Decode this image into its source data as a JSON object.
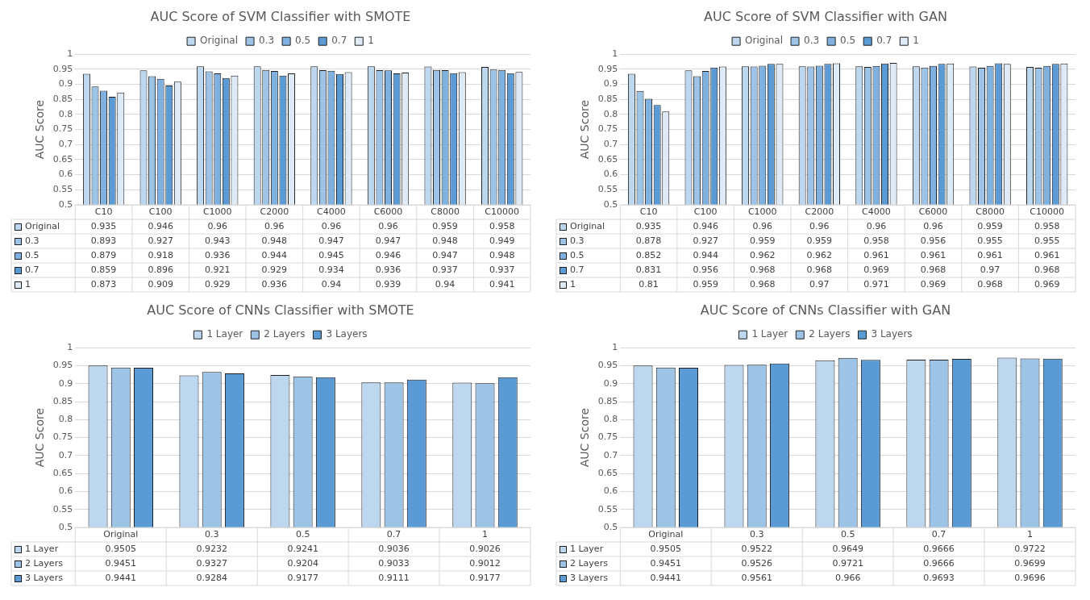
{
  "chart_data": [
    {
      "type": "bar",
      "title": "AUC Score of SVM Classifier with SMOTE",
      "ylabel": "AUC Score",
      "categories": [
        "C10",
        "C100",
        "C1000",
        "C2000",
        "C4000",
        "C6000",
        "C8000",
        "C10000"
      ],
      "series": [
        {
          "name": "Original",
          "color": "#bdd7ee",
          "values": [
            0.935,
            0.946,
            0.96,
            0.96,
            0.96,
            0.96,
            0.959,
            0.958
          ]
        },
        {
          "name": "0.3",
          "color": "#9dc3e6",
          "values": [
            0.893,
            0.927,
            0.943,
            0.948,
            0.947,
            0.947,
            0.948,
            0.949
          ]
        },
        {
          "name": "0.5",
          "color": "#7fb1e0",
          "values": [
            0.879,
            0.918,
            0.936,
            0.944,
            0.945,
            0.946,
            0.947,
            0.948
          ]
        },
        {
          "name": "0.7",
          "color": "#5b9bd5",
          "values": [
            0.859,
            0.896,
            0.921,
            0.929,
            0.934,
            0.936,
            0.937,
            0.937
          ]
        },
        {
          "name": "1",
          "color": "#deebf7",
          "values": [
            0.873,
            0.909,
            0.929,
            0.936,
            0.94,
            0.939,
            0.94,
            0.941
          ]
        }
      ],
      "ylim": [
        0.5,
        1
      ],
      "yticks": [
        0.5,
        0.55,
        0.6,
        0.65,
        0.7,
        0.75,
        0.8,
        0.85,
        0.9,
        0.95,
        1
      ],
      "grid": "y",
      "legend": "top",
      "data_labels": true
    },
    {
      "type": "bar",
      "title": "AUC Score of SVM Classifier with GAN",
      "ylabel": "AUC Score",
      "categories": [
        "C10",
        "C100",
        "C1000",
        "C2000",
        "C4000",
        "C6000",
        "C8000",
        "C10000"
      ],
      "series": [
        {
          "name": "Original",
          "color": "#bdd7ee",
          "values": [
            0.935,
            0.946,
            0.96,
            0.96,
            0.96,
            0.96,
            0.959,
            0.958
          ]
        },
        {
          "name": "0.3",
          "color": "#9dc3e6",
          "values": [
            0.878,
            0.927,
            0.959,
            0.959,
            0.958,
            0.956,
            0.955,
            0.955
          ]
        },
        {
          "name": "0.5",
          "color": "#7fb1e0",
          "values": [
            0.852,
            0.944,
            0.962,
            0.962,
            0.961,
            0.961,
            0.961,
            0.961
          ]
        },
        {
          "name": "0.7",
          "color": "#5b9bd5",
          "values": [
            0.831,
            0.956,
            0.968,
            0.968,
            0.969,
            0.968,
            0.97,
            0.968
          ]
        },
        {
          "name": "1",
          "color": "#deebf7",
          "values": [
            0.81,
            0.959,
            0.968,
            0.97,
            0.971,
            0.969,
            0.968,
            0.969
          ]
        }
      ],
      "ylim": [
        0.5,
        1
      ],
      "yticks": [
        0.5,
        0.55,
        0.6,
        0.65,
        0.7,
        0.75,
        0.8,
        0.85,
        0.9,
        0.95,
        1
      ],
      "grid": "y",
      "legend": "top",
      "data_labels": true
    },
    {
      "type": "bar",
      "title": "AUC Score of CNNs Classifier with SMOTE",
      "ylabel": "AUC Score",
      "categories": [
        "Original",
        "0.3",
        "0.5",
        "0.7",
        "1"
      ],
      "series": [
        {
          "name": "1 Layer",
          "color": "#bdd7ee",
          "values": [
            0.9505,
            0.9232,
            0.9241,
            0.9036,
            0.9026
          ]
        },
        {
          "name": "2 Layers",
          "color": "#9dc3e6",
          "values": [
            0.9451,
            0.9327,
            0.9204,
            0.9033,
            0.9012
          ]
        },
        {
          "name": "3 Layers",
          "color": "#5b9bd5",
          "values": [
            0.9441,
            0.9284,
            0.9177,
            0.9111,
            0.9177
          ]
        }
      ],
      "ylim": [
        0.5,
        1
      ],
      "yticks": [
        0.5,
        0.55,
        0.6,
        0.65,
        0.7,
        0.75,
        0.8,
        0.85,
        0.9,
        0.95,
        1
      ],
      "grid": "y",
      "legend": "top",
      "data_labels": true
    },
    {
      "type": "bar",
      "title": "AUC Score of CNNs Classifier with GAN",
      "ylabel": "AUC Score",
      "categories": [
        "Original",
        "0.3",
        "0.5",
        "0.7",
        "1"
      ],
      "series": [
        {
          "name": "1 Layer",
          "color": "#bdd7ee",
          "values": [
            0.9505,
            0.9522,
            0.9649,
            0.9666,
            0.9722
          ]
        },
        {
          "name": "2 Layers",
          "color": "#9dc3e6",
          "values": [
            0.9451,
            0.9526,
            0.9721,
            0.9666,
            0.9699
          ]
        },
        {
          "name": "3 Layers",
          "color": "#5b9bd5",
          "values": [
            0.9441,
            0.9561,
            0.966,
            0.9693,
            0.9696
          ]
        }
      ],
      "ylim": [
        0.5,
        1
      ],
      "yticks": [
        0.5,
        0.55,
        0.6,
        0.65,
        0.7,
        0.75,
        0.8,
        0.85,
        0.9,
        0.95,
        1
      ],
      "grid": "y",
      "legend": "top",
      "data_labels": true
    }
  ]
}
